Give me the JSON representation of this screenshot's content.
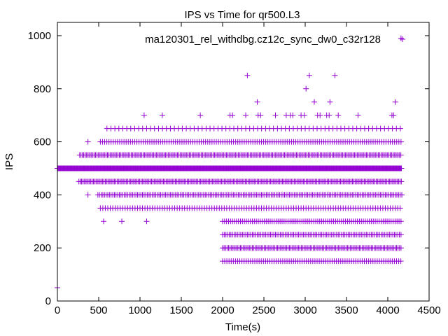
{
  "chart_data": {
    "type": "scatter",
    "title": "IPS vs Time for qr500.L3",
    "xlabel": "Time(s)",
    "ylabel": "IPS",
    "xlim": [
      0,
      4500
    ],
    "ylim": [
      0,
      1050
    ],
    "xticks": [
      0,
      500,
      1000,
      1500,
      2000,
      2500,
      3000,
      3500,
      4000,
      4500
    ],
    "yticks": [
      0,
      200,
      400,
      600,
      800,
      1000
    ],
    "grid": false,
    "legend_position": "top-right",
    "marker": "plus",
    "series": [
      {
        "name": "ma120301_rel_withdbg.cz12c_sync_dw0_c32r128",
        "color": "#9400d3",
        "bands": [
          {
            "ips": 500,
            "start": 0,
            "end": 4170,
            "step": 7
          },
          {
            "ips": 550,
            "start": 270,
            "end": 4170,
            "step": 16
          },
          {
            "ips": 450,
            "start": 260,
            "end": 4170,
            "step": 16
          },
          {
            "ips": 400,
            "start": 490,
            "end": 4170,
            "step": 20
          },
          {
            "ips": 600,
            "start": 520,
            "end": 4170,
            "step": 26
          },
          {
            "ips": 350,
            "start": 520,
            "end": 4170,
            "step": 30
          },
          {
            "ips": 250,
            "start": 2000,
            "end": 4170,
            "step": 20
          },
          {
            "ips": 200,
            "start": 2000,
            "end": 4170,
            "step": 18
          },
          {
            "ips": 300,
            "start": 2000,
            "end": 4170,
            "step": 24
          },
          {
            "ips": 150,
            "start": 2000,
            "end": 4170,
            "step": 26
          },
          {
            "ips": 650,
            "start": 600,
            "end": 4170,
            "step": 48
          }
        ],
        "points": [
          {
            "x": 0,
            "y": 50
          },
          {
            "x": 4160,
            "y": 990
          },
          {
            "x": 2300,
            "y": 850
          },
          {
            "x": 3050,
            "y": 850
          },
          {
            "x": 3360,
            "y": 850
          },
          {
            "x": 3010,
            "y": 800
          },
          {
            "x": 2420,
            "y": 750
          },
          {
            "x": 3110,
            "y": 750
          },
          {
            "x": 3300,
            "y": 750
          },
          {
            "x": 4090,
            "y": 750
          },
          {
            "x": 1050,
            "y": 700
          },
          {
            "x": 1270,
            "y": 700
          },
          {
            "x": 1730,
            "y": 700
          },
          {
            "x": 2090,
            "y": 700
          },
          {
            "x": 2120,
            "y": 700
          },
          {
            "x": 2280,
            "y": 700
          },
          {
            "x": 2430,
            "y": 700
          },
          {
            "x": 2460,
            "y": 700
          },
          {
            "x": 2640,
            "y": 700
          },
          {
            "x": 2770,
            "y": 700
          },
          {
            "x": 2820,
            "y": 700
          },
          {
            "x": 2850,
            "y": 700
          },
          {
            "x": 2950,
            "y": 700
          },
          {
            "x": 2990,
            "y": 700
          },
          {
            "x": 3150,
            "y": 700
          },
          {
            "x": 3180,
            "y": 700
          },
          {
            "x": 3260,
            "y": 700
          },
          {
            "x": 3290,
            "y": 700
          },
          {
            "x": 3400,
            "y": 700
          },
          {
            "x": 3640,
            "y": 700
          },
          {
            "x": 4050,
            "y": 700
          },
          {
            "x": 4070,
            "y": 700
          },
          {
            "x": 370,
            "y": 600
          },
          {
            "x": 370,
            "y": 400
          },
          {
            "x": 560,
            "y": 300
          },
          {
            "x": 780,
            "y": 300
          },
          {
            "x": 1080,
            "y": 300
          }
        ]
      }
    ]
  }
}
